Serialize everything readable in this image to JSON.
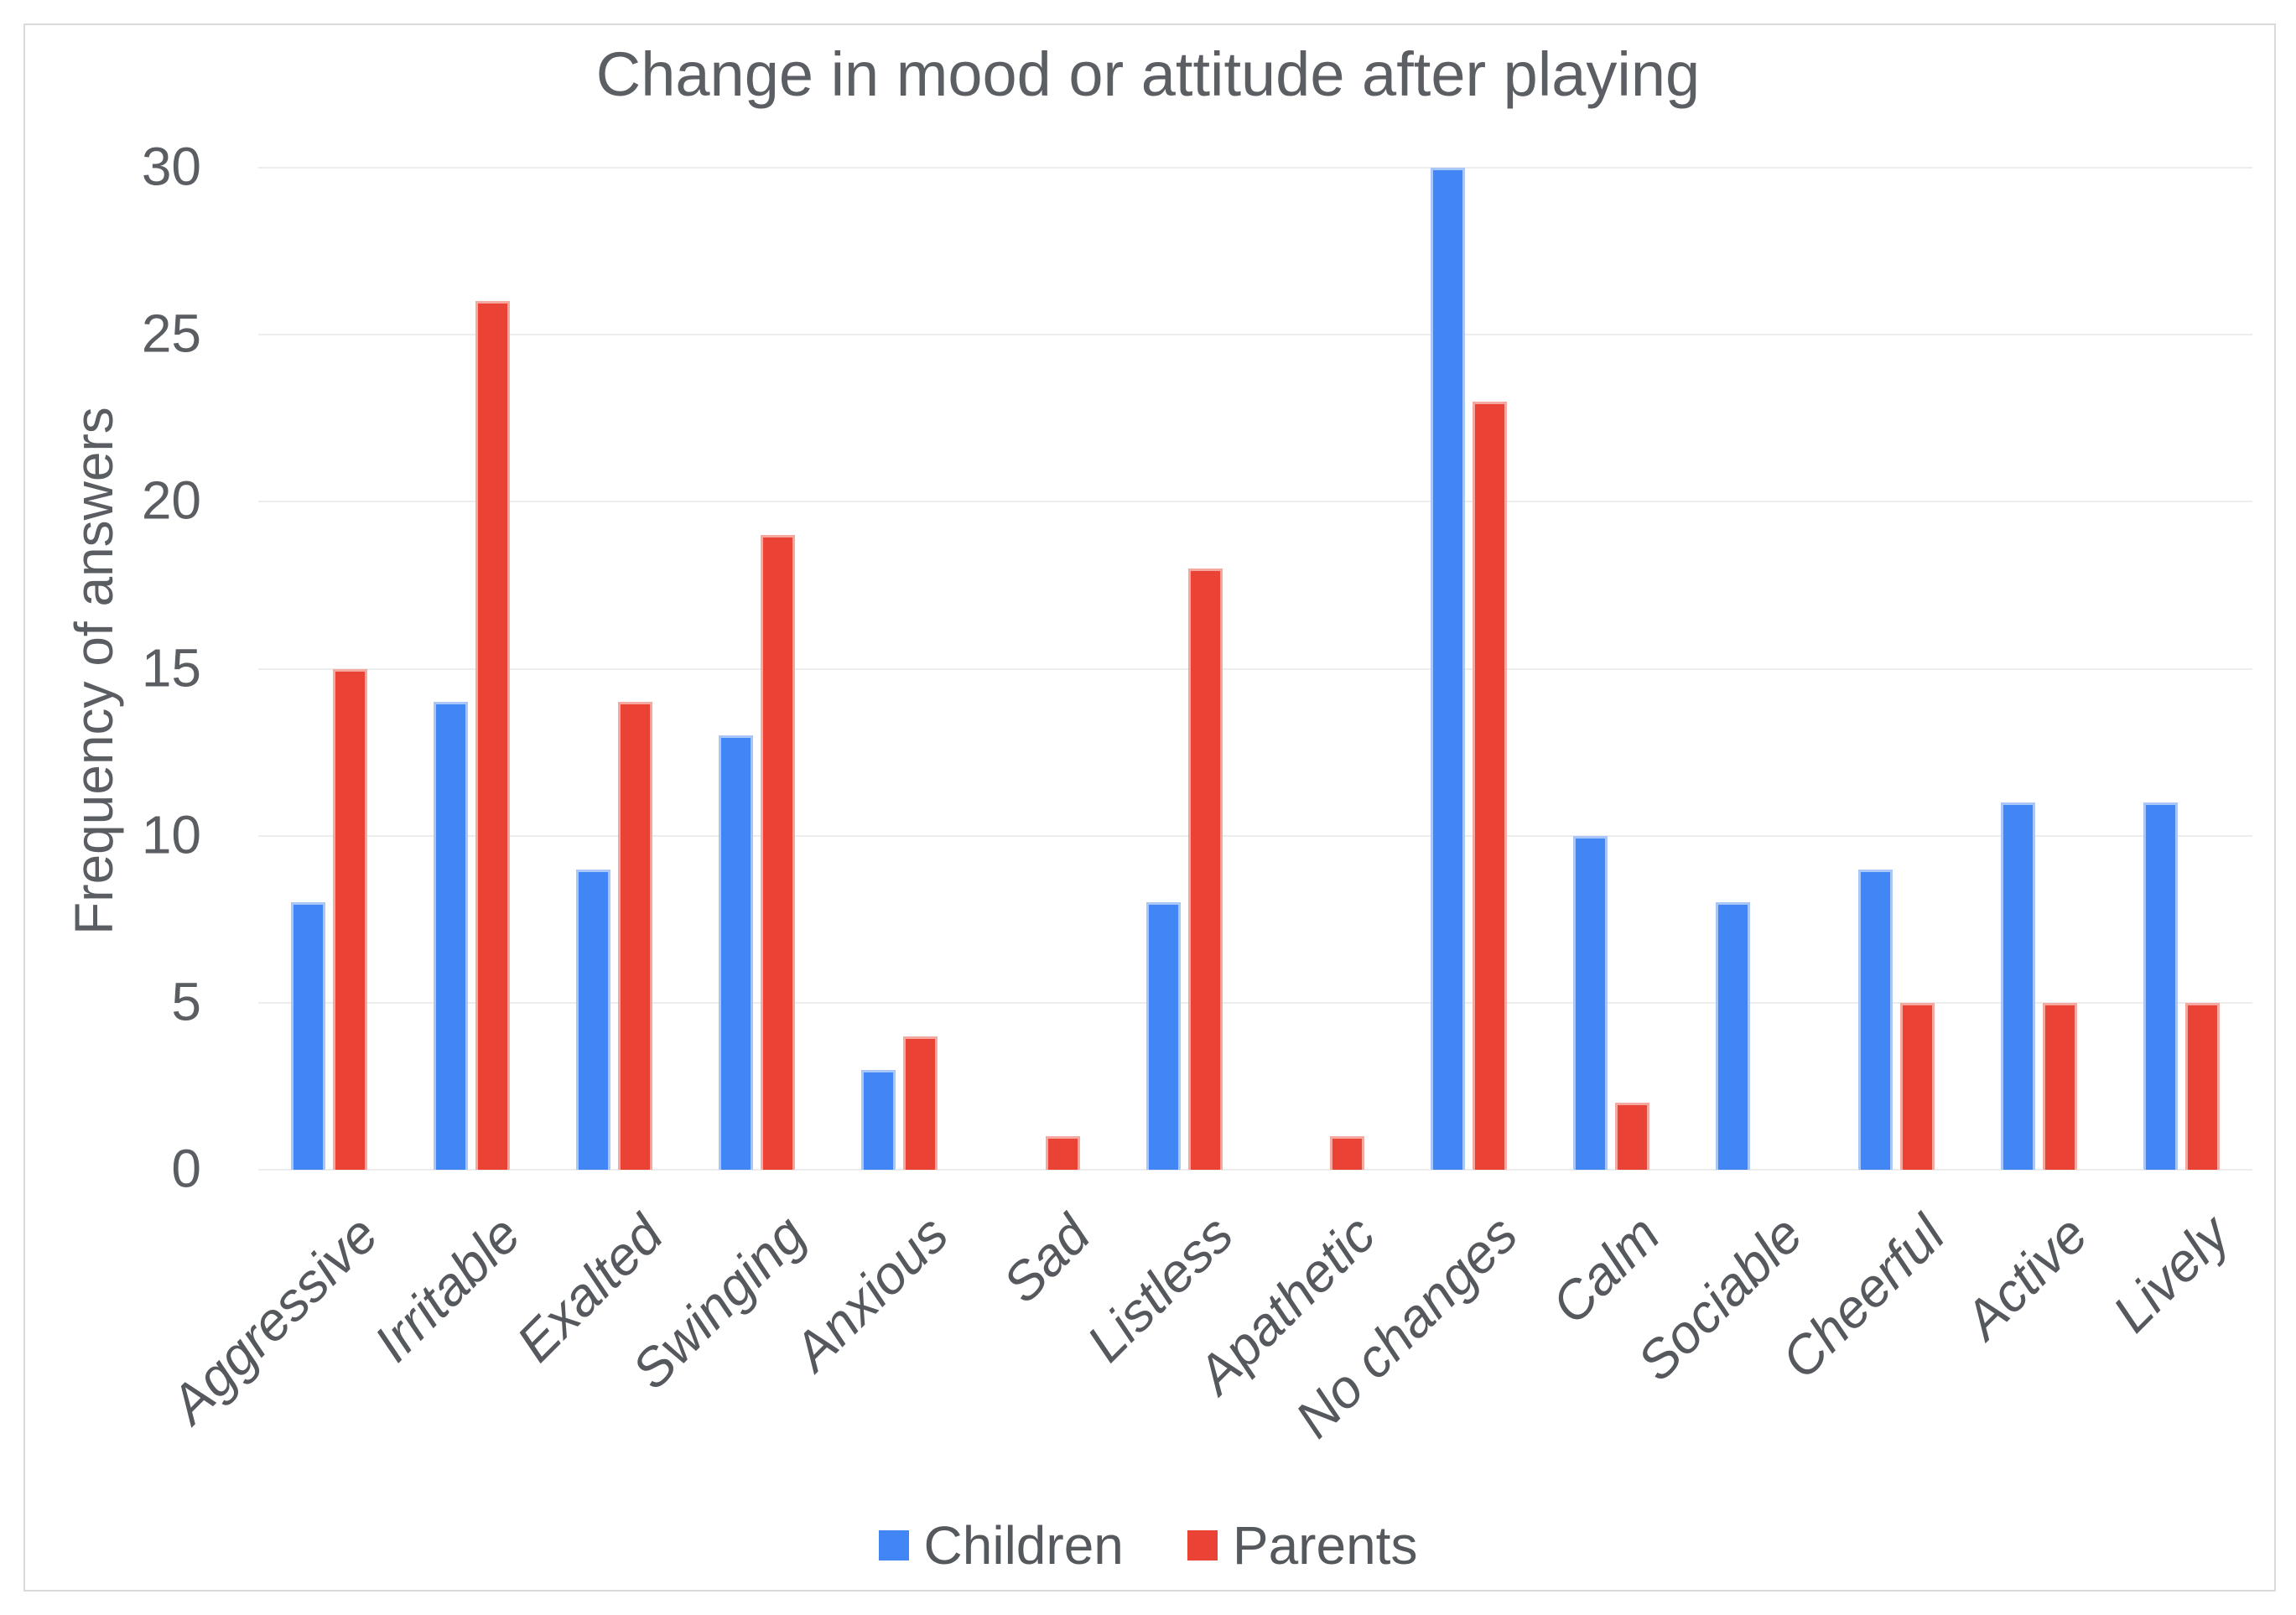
{
  "frame": {
    "background": "#ffffff",
    "border_color": "#d9dadc"
  },
  "chart_data": {
    "type": "bar",
    "title": "Change in mood or attitude after playing",
    "xlabel": "",
    "ylabel": "Frequency of answers",
    "categories": [
      "Aggressive",
      "Irritable",
      "Exalted",
      "Swinging",
      "Anxious",
      "Sad",
      "Listless",
      "Apathetic",
      "No changes",
      "Calm",
      "Sociable",
      "Cheerful",
      "Active",
      "Lively"
    ],
    "series": [
      {
        "name": "Children",
        "color": "#4285f4",
        "edge_color": "#a9c6f8",
        "values": [
          8,
          14,
          9,
          13,
          3,
          0,
          8,
          0,
          30,
          10,
          8,
          9,
          11,
          11
        ]
      },
      {
        "name": "Parents",
        "color": "#ea4335",
        "edge_color": "#f4a89f",
        "values": [
          15,
          26,
          14,
          19,
          4,
          1,
          18,
          1,
          23,
          2,
          0,
          5,
          5,
          5
        ]
      }
    ],
    "ylim": [
      0,
      30
    ],
    "yticks": [
      0,
      5,
      10,
      15,
      20,
      25,
      30
    ],
    "grid": "horizontal",
    "gridline_color": "#ededee",
    "legend_position": "bottom",
    "title_color": "#5b5e62",
    "axis_text_color": "#5a5d61",
    "x_label_style": "italic-rotated-45"
  }
}
